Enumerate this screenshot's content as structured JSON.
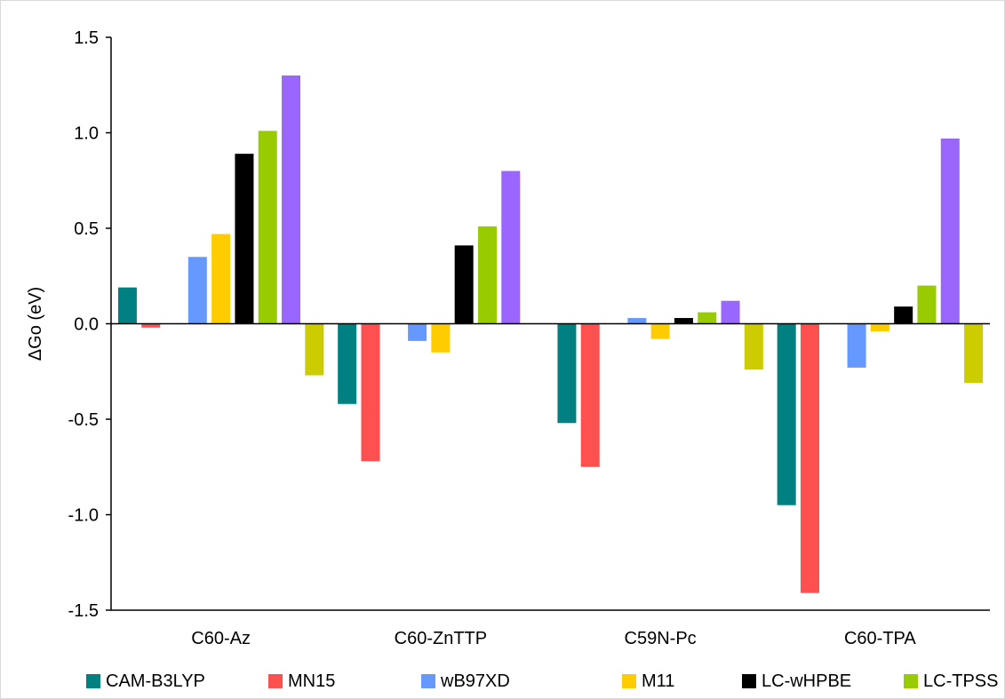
{
  "chart_data": {
    "type": "bar",
    "title": "",
    "xlabel": "",
    "ylabel": "ΔGo (eV)",
    "ylim": [
      -1.5,
      1.5
    ],
    "yticks": [
      1.5,
      1.0,
      0.5,
      0.0,
      -0.5,
      -1.0,
      -1.5
    ],
    "ytick_labels": [
      "1.5",
      "1.0",
      "0.5",
      "0.0",
      "-0.5",
      "-1.0",
      "-1.5"
    ],
    "grid": false,
    "legend_position": "bottom",
    "categories": [
      "C60-Az",
      "C60-ZnTTP",
      "C59N-Pc",
      "C60-TPA"
    ],
    "series": [
      {
        "name": "CAM-B3LYP",
        "color": "#008080",
        "values": [
          0.19,
          -0.42,
          -0.52,
          -0.95
        ]
      },
      {
        "name": "MN15",
        "color": "#ff5050",
        "values": [
          -0.02,
          -0.72,
          -0.75,
          -1.41
        ]
      },
      {
        "name": "",
        "color": "#ffffff",
        "values": [
          0.0,
          0.0,
          0.0,
          0.0
        ]
      },
      {
        "name": "wB97XD",
        "color": "#6699ff",
        "values": [
          0.35,
          -0.09,
          0.03,
          -0.23
        ]
      },
      {
        "name": "M11",
        "color": "#ffcc00",
        "values": [
          0.47,
          -0.15,
          -0.08,
          -0.04
        ]
      },
      {
        "name": "LC-wHPBE",
        "color": "#000000",
        "values": [
          0.89,
          0.41,
          0.03,
          0.09
        ]
      },
      {
        "name": "LC-TPSS",
        "color": "#99cc00",
        "values": [
          1.01,
          0.51,
          0.06,
          0.2
        ]
      },
      {
        "name": "",
        "color": "#9966ff",
        "values": [
          1.3,
          0.8,
          0.12,
          0.97
        ]
      },
      {
        "name": "",
        "color": "#cccc00",
        "values": [
          -0.27,
          0.0,
          -0.24,
          -0.31
        ]
      }
    ]
  }
}
